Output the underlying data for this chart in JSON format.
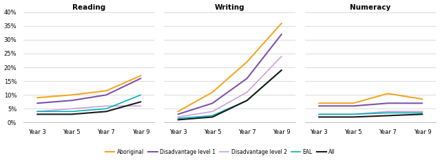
{
  "titles": [
    "Reading",
    "Writing",
    "Numeracy"
  ],
  "x_labels": [
    "Year 3",
    "Year 5",
    "Year 7",
    "Year 9"
  ],
  "x_values": [
    3,
    5,
    7,
    9
  ],
  "series": {
    "Aboriginal": {
      "reading": [
        9,
        10,
        11.5,
        17
      ],
      "writing": [
        4,
        11,
        22,
        36
      ],
      "numeracy": [
        7,
        7,
        10.5,
        8.5
      ]
    },
    "Disadvantage level 1": {
      "reading": [
        7,
        8,
        10,
        16
      ],
      "writing": [
        3,
        7,
        16,
        32
      ],
      "numeracy": [
        6,
        6,
        7,
        7
      ]
    },
    "Disadvantage level 2": {
      "reading": [
        4,
        5,
        6,
        6
      ],
      "writing": [
        2,
        4,
        11,
        24
      ],
      "numeracy": [
        3,
        3,
        4,
        4
      ]
    },
    "EAL": {
      "reading": [
        4,
        4,
        5,
        10
      ],
      "writing": [
        1.5,
        2.5,
        8,
        19
      ],
      "numeracy": [
        3,
        3,
        3.5,
        3.5
      ]
    },
    "All": {
      "reading": [
        3,
        3,
        4,
        7.5
      ],
      "writing": [
        1,
        2,
        8,
        19
      ],
      "numeracy": [
        2,
        2,
        2.5,
        3
      ]
    }
  },
  "colors": {
    "Aboriginal": "#f5a623",
    "Disadvantage level 1": "#7b52ab",
    "Disadvantage level 2": "#c9a0dc",
    "EAL": "#00b0b9",
    "All": "#1a1a1a"
  },
  "linewidths": {
    "Aboriginal": 1.5,
    "Disadvantage level 1": 1.5,
    "Disadvantage level 2": 1.2,
    "EAL": 1.2,
    "All": 1.5
  },
  "ylim": [
    0,
    40
  ],
  "yticks": [
    0,
    5,
    10,
    15,
    20,
    25,
    30,
    35,
    40
  ],
  "background_color": "#ffffff",
  "grid_color": "#cccccc",
  "legend_order": [
    "Aboriginal",
    "Disadvantage level 1",
    "Disadvantage level 2",
    "EAL",
    "All"
  ],
  "fig_width": 6.39,
  "fig_height": 2.33
}
